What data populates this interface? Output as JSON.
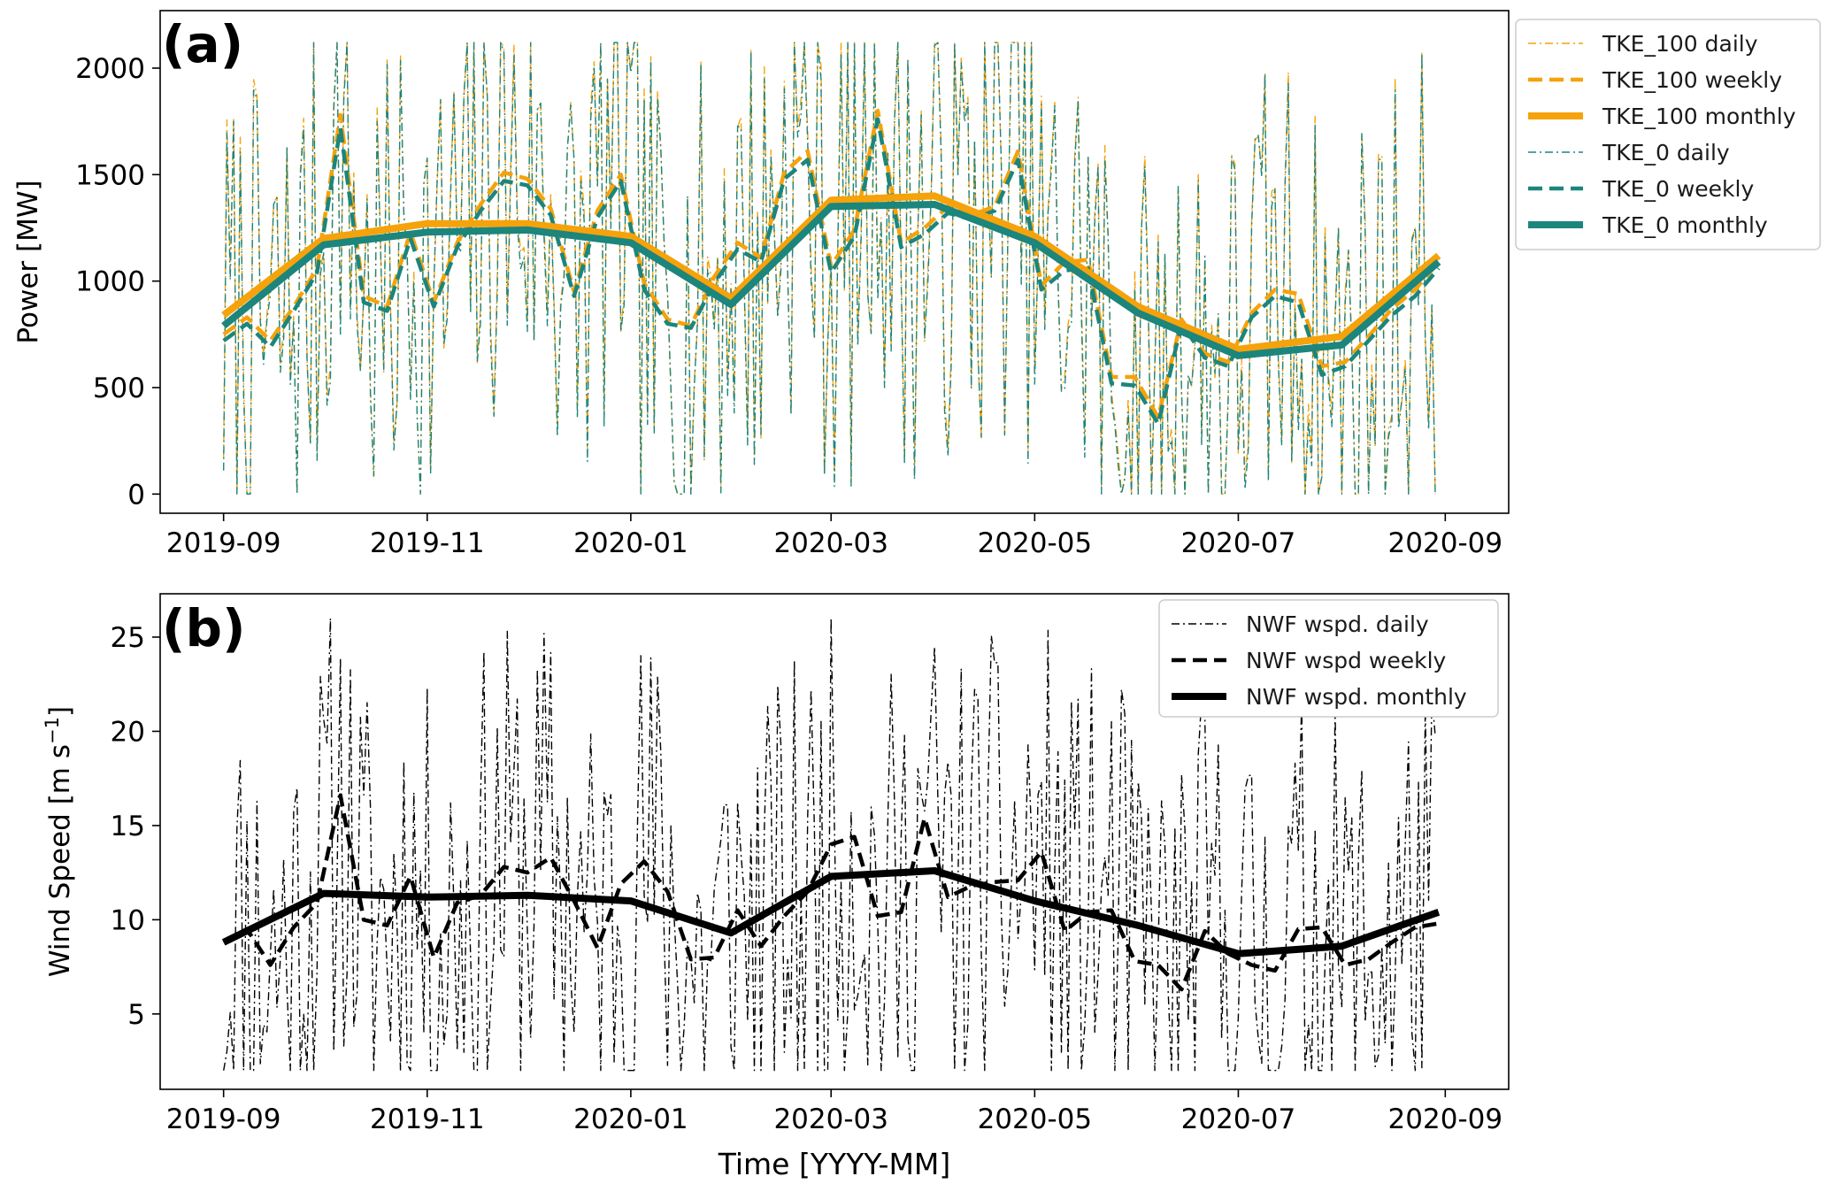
{
  "chart_data": [
    {
      "type": "line",
      "panel_label": "(a)",
      "ylabel": "Power [MW]",
      "xlabel": "",
      "x_ticks": [
        "2019-09",
        "2019-11",
        "2020-01",
        "2020-03",
        "2020-05",
        "2020-07",
        "2020-09"
      ],
      "x_ticks_day": [
        0,
        61,
        122,
        182,
        243,
        304,
        366
      ],
      "xlim": [
        -19,
        385
      ],
      "y_ticks": [
        0,
        500,
        1000,
        1500,
        2000
      ],
      "ylim": [
        -90,
        2270
      ],
      "legend_position": "outside-right-top",
      "daily_seed": 7,
      "daily_note": "daily series are dense noisy traces (≈363 points) oscillating between ~0 and ~2120 MW",
      "series": [
        {
          "name": "TKE_100 daily",
          "color": "#f5a20b",
          "style": "dashdot-thin",
          "kind": "daily",
          "range": [
            0,
            2120
          ]
        },
        {
          "name": "TKE_100 weekly",
          "color": "#f5a20b",
          "style": "dashed-medium",
          "x": [
            0,
            7,
            14,
            21,
            28,
            35,
            42,
            49,
            56,
            63,
            70,
            77,
            84,
            91,
            98,
            105,
            112,
            119,
            126,
            133,
            140,
            147,
            154,
            161,
            168,
            175,
            182,
            189,
            196,
            203,
            210,
            217,
            224,
            231,
            238,
            245,
            252,
            259,
            266,
            273,
            280,
            287,
            294,
            301,
            308,
            315,
            322,
            329,
            336,
            343,
            350,
            357,
            364
          ],
          "values": [
            750,
            830,
            720,
            880,
            1060,
            1780,
            930,
            880,
            1230,
            900,
            1180,
            1360,
            1510,
            1480,
            1340,
            950,
            1330,
            1500,
            990,
            820,
            790,
            1020,
            1180,
            1110,
            1510,
            1610,
            1070,
            1240,
            1800,
            1180,
            1250,
            1350,
            1310,
            1350,
            1610,
            980,
            1090,
            1100,
            550,
            550,
            360,
            820,
            660,
            620,
            850,
            960,
            940,
            600,
            620,
            740,
            870,
            960,
            1090
          ]
        },
        {
          "name": "TKE_100 monthly",
          "color": "#f5a20b",
          "style": "solid-thick",
          "x": [
            0,
            30,
            61,
            91,
            122,
            152,
            182,
            213,
            243,
            274,
            304,
            335,
            364
          ],
          "values": [
            840,
            1200,
            1270,
            1270,
            1210,
            920,
            1380,
            1400,
            1210,
            880,
            680,
            740,
            1120
          ]
        },
        {
          "name": "TKE_0 daily",
          "color": "#1c857c",
          "style": "dashdot-thin",
          "kind": "daily",
          "range": [
            0,
            2120
          ]
        },
        {
          "name": "TKE_0 weekly",
          "color": "#1c857c",
          "style": "dashed-medium",
          "x": [
            0,
            7,
            14,
            21,
            28,
            35,
            42,
            49,
            56,
            63,
            70,
            77,
            84,
            91,
            98,
            105,
            112,
            119,
            126,
            133,
            140,
            147,
            154,
            161,
            168,
            175,
            182,
            189,
            196,
            203,
            210,
            217,
            224,
            231,
            238,
            245,
            252,
            259,
            266,
            273,
            280,
            287,
            294,
            301,
            308,
            315,
            322,
            329,
            336,
            343,
            350,
            357,
            364
          ],
          "values": [
            720,
            800,
            690,
            860,
            1040,
            1720,
            900,
            860,
            1200,
            880,
            1160,
            1330,
            1470,
            1450,
            1310,
            930,
            1300,
            1470,
            960,
            800,
            780,
            990,
            1150,
            1090,
            1480,
            1570,
            1040,
            1210,
            1760,
            1160,
            1220,
            1320,
            1290,
            1330,
            1570,
            960,
            1050,
            1060,
            520,
            510,
            330,
            800,
            640,
            600,
            830,
            930,
            900,
            560,
            600,
            720,
            840,
            930,
            1060
          ]
        },
        {
          "name": "TKE_0 monthly",
          "color": "#1c857c",
          "style": "solid-thick",
          "x": [
            0,
            30,
            61,
            91,
            122,
            152,
            182,
            213,
            243,
            274,
            304,
            335,
            364
          ],
          "values": [
            790,
            1170,
            1230,
            1240,
            1180,
            890,
            1350,
            1360,
            1180,
            850,
            650,
            700,
            1090
          ]
        }
      ]
    },
    {
      "type": "line",
      "panel_label": "(b)",
      "ylabel": "Wind Speed [m s",
      "ylabel_sup": "−1",
      "ylabel_end": "]",
      "xlabel": "Time [YYYY-MM]",
      "x_ticks": [
        "2019-09",
        "2019-11",
        "2020-01",
        "2020-03",
        "2020-05",
        "2020-07",
        "2020-09"
      ],
      "x_ticks_day": [
        0,
        61,
        122,
        182,
        243,
        304,
        366
      ],
      "xlim": [
        -19,
        385
      ],
      "y_ticks": [
        5,
        10,
        15,
        20,
        25
      ],
      "ylim": [
        1.0,
        27.3
      ],
      "legend_position": "top-right",
      "daily_seed": 11,
      "daily_note": "daily wind speed is a dense noisy trace (≈363 points) between ~2 and ~26 m/s",
      "series": [
        {
          "name": "NWF wspd. daily",
          "color": "#000000",
          "style": "dashdot-thin",
          "kind": "daily",
          "range": [
            2,
            26
          ]
        },
        {
          "name": "NWF wspd weekly",
          "color": "#000000",
          "style": "dashed-medium",
          "x": [
            0,
            7,
            14,
            21,
            28,
            35,
            42,
            49,
            56,
            63,
            70,
            77,
            84,
            91,
            98,
            105,
            112,
            119,
            126,
            133,
            140,
            147,
            154,
            161,
            168,
            175,
            182,
            189,
            196,
            203,
            210,
            217,
            224,
            231,
            238,
            245,
            252,
            259,
            266,
            273,
            280,
            287,
            294,
            301,
            308,
            315,
            322,
            329,
            336,
            343,
            350,
            357,
            364
          ],
          "values": [
            8.8,
            9.5,
            7.6,
            9.6,
            10.9,
            16.6,
            10.0,
            9.7,
            12.3,
            8.0,
            10.9,
            11.3,
            12.8,
            12.5,
            13.3,
            11.0,
            8.5,
            11.9,
            13.1,
            11.5,
            7.9,
            8.0,
            10.5,
            8.6,
            10.2,
            11.5,
            14.0,
            14.4,
            10.2,
            10.4,
            15.4,
            11.2,
            11.8,
            12.0,
            12.1,
            13.6,
            9.4,
            10.4,
            10.5,
            7.8,
            7.6,
            6.3,
            9.4,
            8.2,
            7.6,
            7.3,
            9.5,
            9.6,
            7.6,
            7.9,
            8.8,
            9.6,
            9.8
          ]
        },
        {
          "name": "NWF wspd. monthly",
          "color": "#000000",
          "style": "solid-thick",
          "x": [
            0,
            30,
            61,
            91,
            122,
            152,
            182,
            213,
            243,
            274,
            304,
            335,
            364
          ],
          "values": [
            8.8,
            11.4,
            11.2,
            11.3,
            11.0,
            9.3,
            12.3,
            12.6,
            11.0,
            9.7,
            8.2,
            8.6,
            10.4
          ]
        }
      ]
    }
  ]
}
